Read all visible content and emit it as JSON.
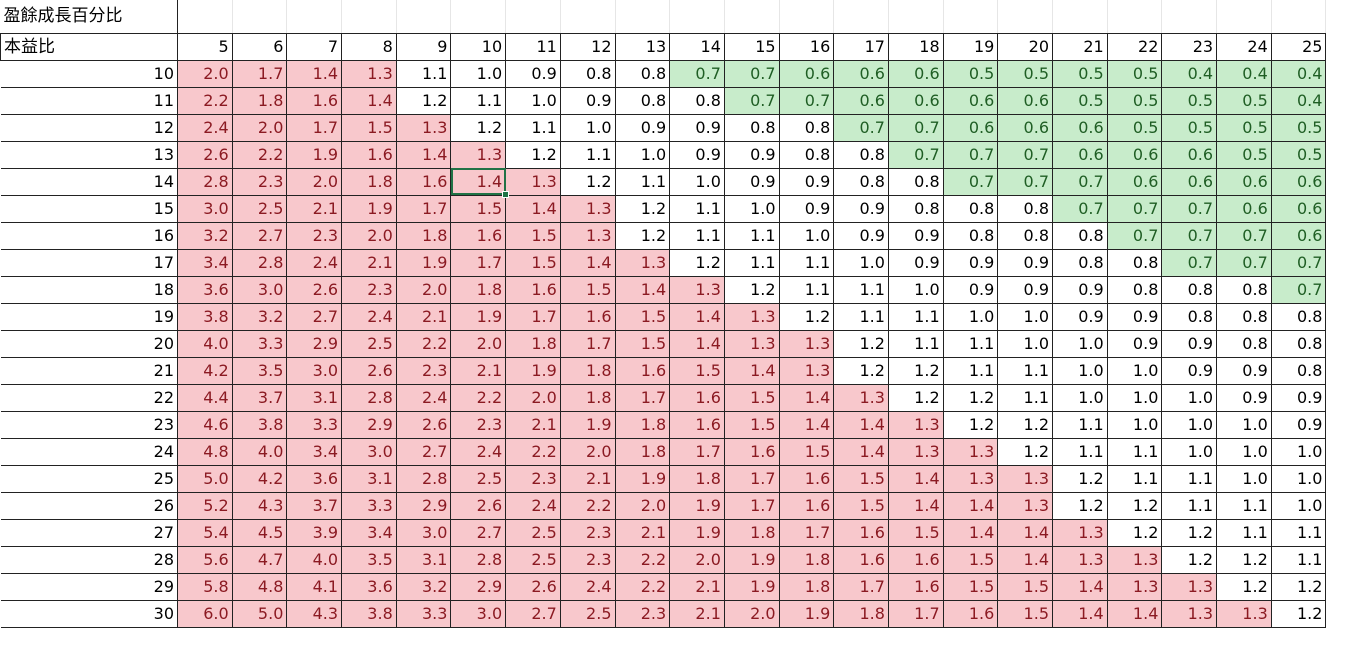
{
  "sheet": {
    "title": "盈餘成長百分比",
    "row_axis_label": "本益比",
    "growth_columns": [
      "5",
      "6",
      "7",
      "8",
      "9",
      "10",
      "11",
      "12",
      "13",
      "14",
      "15",
      "16",
      "17",
      "18",
      "19",
      "20",
      "21",
      "22",
      "23",
      "24",
      "25"
    ],
    "selected_cell": {
      "pe": "14",
      "growth": "10"
    },
    "colors": {
      "red_fill": "#f8c8cc",
      "red_text": "#8b1a22",
      "green_fill": "#c8eccb",
      "green_text": "#1f5e24",
      "selection": "#217346"
    },
    "rows": [
      {
        "pe": "10",
        "values": [
          "2.0",
          "1.7",
          "1.4",
          "1.3",
          "1.1",
          "1.0",
          "0.9",
          "0.8",
          "0.8",
          "0.7",
          "0.7",
          "0.6",
          "0.6",
          "0.6",
          "0.5",
          "0.5",
          "0.5",
          "0.5",
          "0.4",
          "0.4",
          "0.4"
        ]
      },
      {
        "pe": "11",
        "values": [
          "2.2",
          "1.8",
          "1.6",
          "1.4",
          "1.2",
          "1.1",
          "1.0",
          "0.9",
          "0.8",
          "0.8",
          "0.7",
          "0.7",
          "0.6",
          "0.6",
          "0.6",
          "0.6",
          "0.5",
          "0.5",
          "0.5",
          "0.5",
          "0.4"
        ]
      },
      {
        "pe": "12",
        "values": [
          "2.4",
          "2.0",
          "1.7",
          "1.5",
          "1.3",
          "1.2",
          "1.1",
          "1.0",
          "0.9",
          "0.9",
          "0.8",
          "0.8",
          "0.7",
          "0.7",
          "0.6",
          "0.6",
          "0.6",
          "0.5",
          "0.5",
          "0.5",
          "0.5"
        ]
      },
      {
        "pe": "13",
        "values": [
          "2.6",
          "2.2",
          "1.9",
          "1.6",
          "1.4",
          "1.3",
          "1.2",
          "1.1",
          "1.0",
          "0.9",
          "0.9",
          "0.8",
          "0.8",
          "0.7",
          "0.7",
          "0.7",
          "0.6",
          "0.6",
          "0.6",
          "0.5",
          "0.5"
        ]
      },
      {
        "pe": "14",
        "values": [
          "2.8",
          "2.3",
          "2.0",
          "1.8",
          "1.6",
          "1.4",
          "1.3",
          "1.2",
          "1.1",
          "1.0",
          "0.9",
          "0.9",
          "0.8",
          "0.8",
          "0.7",
          "0.7",
          "0.7",
          "0.6",
          "0.6",
          "0.6",
          "0.6"
        ]
      },
      {
        "pe": "15",
        "values": [
          "3.0",
          "2.5",
          "2.1",
          "1.9",
          "1.7",
          "1.5",
          "1.4",
          "1.3",
          "1.2",
          "1.1",
          "1.0",
          "0.9",
          "0.9",
          "0.8",
          "0.8",
          "0.8",
          "0.7",
          "0.7",
          "0.7",
          "0.6",
          "0.6"
        ]
      },
      {
        "pe": "16",
        "values": [
          "3.2",
          "2.7",
          "2.3",
          "2.0",
          "1.8",
          "1.6",
          "1.5",
          "1.3",
          "1.2",
          "1.1",
          "1.1",
          "1.0",
          "0.9",
          "0.9",
          "0.8",
          "0.8",
          "0.8",
          "0.7",
          "0.7",
          "0.7",
          "0.6"
        ]
      },
      {
        "pe": "17",
        "values": [
          "3.4",
          "2.8",
          "2.4",
          "2.1",
          "1.9",
          "1.7",
          "1.5",
          "1.4",
          "1.3",
          "1.2",
          "1.1",
          "1.1",
          "1.0",
          "0.9",
          "0.9",
          "0.9",
          "0.8",
          "0.8",
          "0.7",
          "0.7",
          "0.7"
        ]
      },
      {
        "pe": "18",
        "values": [
          "3.6",
          "3.0",
          "2.6",
          "2.3",
          "2.0",
          "1.8",
          "1.6",
          "1.5",
          "1.4",
          "1.3",
          "1.2",
          "1.1",
          "1.1",
          "1.0",
          "0.9",
          "0.9",
          "0.9",
          "0.8",
          "0.8",
          "0.8",
          "0.7"
        ]
      },
      {
        "pe": "19",
        "values": [
          "3.8",
          "3.2",
          "2.7",
          "2.4",
          "2.1",
          "1.9",
          "1.7",
          "1.6",
          "1.5",
          "1.4",
          "1.3",
          "1.2",
          "1.1",
          "1.1",
          "1.0",
          "1.0",
          "0.9",
          "0.9",
          "0.8",
          "0.8",
          "0.8"
        ]
      },
      {
        "pe": "20",
        "values": [
          "4.0",
          "3.3",
          "2.9",
          "2.5",
          "2.2",
          "2.0",
          "1.8",
          "1.7",
          "1.5",
          "1.4",
          "1.3",
          "1.3",
          "1.2",
          "1.1",
          "1.1",
          "1.0",
          "1.0",
          "0.9",
          "0.9",
          "0.8",
          "0.8"
        ]
      },
      {
        "pe": "21",
        "values": [
          "4.2",
          "3.5",
          "3.0",
          "2.6",
          "2.3",
          "2.1",
          "1.9",
          "1.8",
          "1.6",
          "1.5",
          "1.4",
          "1.3",
          "1.2",
          "1.2",
          "1.1",
          "1.1",
          "1.0",
          "1.0",
          "0.9",
          "0.9",
          "0.8"
        ]
      },
      {
        "pe": "22",
        "values": [
          "4.4",
          "3.7",
          "3.1",
          "2.8",
          "2.4",
          "2.2",
          "2.0",
          "1.8",
          "1.7",
          "1.6",
          "1.5",
          "1.4",
          "1.3",
          "1.2",
          "1.2",
          "1.1",
          "1.0",
          "1.0",
          "1.0",
          "0.9",
          "0.9"
        ]
      },
      {
        "pe": "23",
        "values": [
          "4.6",
          "3.8",
          "3.3",
          "2.9",
          "2.6",
          "2.3",
          "2.1",
          "1.9",
          "1.8",
          "1.6",
          "1.5",
          "1.4",
          "1.4",
          "1.3",
          "1.2",
          "1.2",
          "1.1",
          "1.0",
          "1.0",
          "1.0",
          "0.9"
        ]
      },
      {
        "pe": "24",
        "values": [
          "4.8",
          "4.0",
          "3.4",
          "3.0",
          "2.7",
          "2.4",
          "2.2",
          "2.0",
          "1.8",
          "1.7",
          "1.6",
          "1.5",
          "1.4",
          "1.3",
          "1.3",
          "1.2",
          "1.1",
          "1.1",
          "1.0",
          "1.0",
          "1.0"
        ]
      },
      {
        "pe": "25",
        "values": [
          "5.0",
          "4.2",
          "3.6",
          "3.1",
          "2.8",
          "2.5",
          "2.3",
          "2.1",
          "1.9",
          "1.8",
          "1.7",
          "1.6",
          "1.5",
          "1.4",
          "1.3",
          "1.3",
          "1.2",
          "1.1",
          "1.1",
          "1.0",
          "1.0"
        ]
      },
      {
        "pe": "26",
        "values": [
          "5.2",
          "4.3",
          "3.7",
          "3.3",
          "2.9",
          "2.6",
          "2.4",
          "2.2",
          "2.0",
          "1.9",
          "1.7",
          "1.6",
          "1.5",
          "1.4",
          "1.4",
          "1.3",
          "1.2",
          "1.2",
          "1.1",
          "1.1",
          "1.0"
        ]
      },
      {
        "pe": "27",
        "values": [
          "5.4",
          "4.5",
          "3.9",
          "3.4",
          "3.0",
          "2.7",
          "2.5",
          "2.3",
          "2.1",
          "1.9",
          "1.8",
          "1.7",
          "1.6",
          "1.5",
          "1.4",
          "1.4",
          "1.3",
          "1.2",
          "1.2",
          "1.1",
          "1.1"
        ]
      },
      {
        "pe": "28",
        "values": [
          "5.6",
          "4.7",
          "4.0",
          "3.5",
          "3.1",
          "2.8",
          "2.5",
          "2.3",
          "2.2",
          "2.0",
          "1.9",
          "1.8",
          "1.6",
          "1.6",
          "1.5",
          "1.4",
          "1.3",
          "1.3",
          "1.2",
          "1.2",
          "1.1"
        ]
      },
      {
        "pe": "29",
        "values": [
          "5.8",
          "4.8",
          "4.1",
          "3.6",
          "3.2",
          "2.9",
          "2.6",
          "2.4",
          "2.2",
          "2.1",
          "1.9",
          "1.8",
          "1.7",
          "1.6",
          "1.5",
          "1.5",
          "1.4",
          "1.3",
          "1.3",
          "1.2",
          "1.2"
        ]
      },
      {
        "pe": "30",
        "values": [
          "6.0",
          "5.0",
          "4.3",
          "3.8",
          "3.3",
          "3.0",
          "2.7",
          "2.5",
          "2.3",
          "2.1",
          "2.0",
          "1.9",
          "1.8",
          "1.7",
          "1.6",
          "1.5",
          "1.4",
          "1.4",
          "1.3",
          "1.3",
          "1.2"
        ]
      }
    ]
  }
}
